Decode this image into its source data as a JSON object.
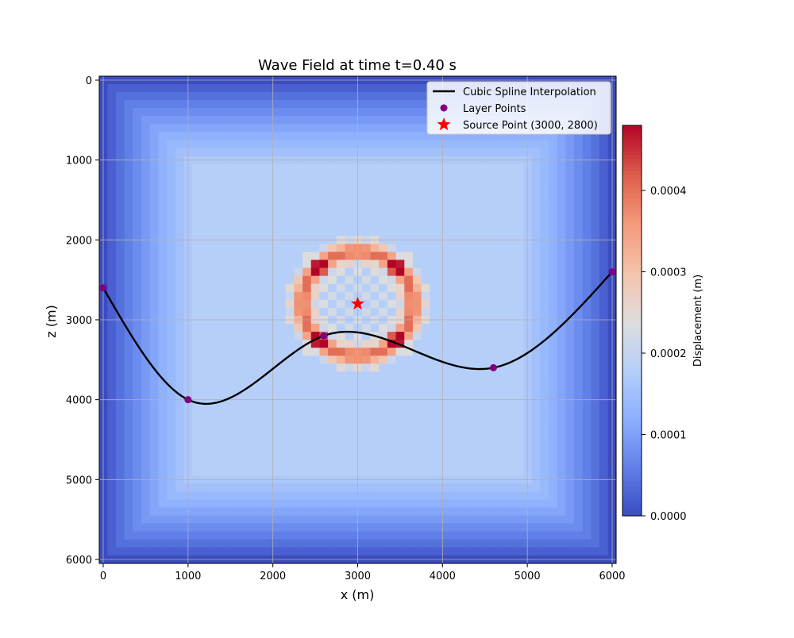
{
  "chart_data": {
    "type": "heatmap",
    "title": "Wave Field at time t=0.40 s",
    "xlabel": "x (m)",
    "ylabel": "z (m)",
    "xlim": [
      0,
      6000
    ],
    "zlim": [
      0,
      6000
    ],
    "y_inverted": true,
    "grid": true,
    "x_ticks": [
      "0",
      "1000",
      "2000",
      "3000",
      "4000",
      "5000",
      "6000"
    ],
    "y_ticks": [
      "0",
      "1000",
      "2000",
      "3000",
      "4000",
      "5000",
      "6000"
    ],
    "heatmap": {
      "grid_cells": 61,
      "cell_spacing_m": 100,
      "colormap": "coolwarm",
      "background_max_displacement": 0.00018,
      "edge_taper_m": 1100,
      "ring_center": [
        3000,
        2800
      ],
      "ring_outer_radius_m": 850,
      "ring_peak_radius_m": 650
    },
    "colorbar": {
      "label": "Displacement (m)",
      "min": 0.0,
      "max": 0.00048,
      "ticks": [
        "0.0000",
        "0.0001",
        "0.0002",
        "0.0003",
        "0.0004"
      ],
      "tick_values": [
        0.0,
        0.0001,
        0.0002,
        0.0003,
        0.0004
      ]
    },
    "series": [
      {
        "name": "Cubic Spline Interpolation",
        "kind": "line",
        "color": "#000000",
        "x": [
          0,
          1000,
          2600,
          4600,
          6000
        ],
        "z": [
          2600,
          4000,
          3200,
          3600,
          2400
        ]
      },
      {
        "name": "Layer Points",
        "kind": "scatter",
        "color": "#800080",
        "x": [
          0,
          1000,
          2600,
          4600,
          6000
        ],
        "z": [
          2600,
          4000,
          3200,
          3600,
          2400
        ]
      },
      {
        "name": "Source Point (3000, 2800)",
        "kind": "marker",
        "marker": "star",
        "color": "#ff0000",
        "x": [
          3000
        ],
        "z": [
          2800
        ]
      }
    ],
    "legend_position": "top-right"
  }
}
